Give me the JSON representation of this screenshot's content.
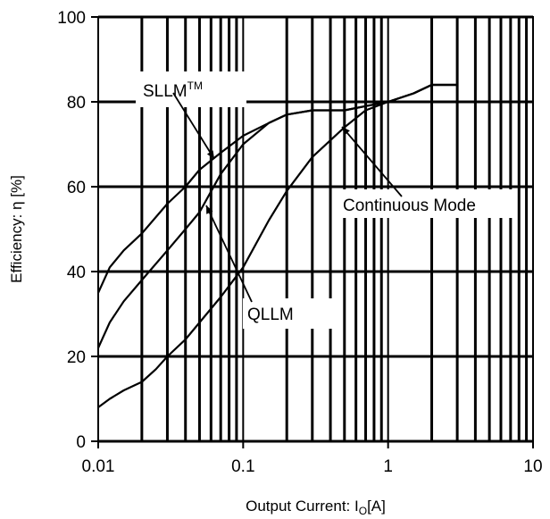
{
  "chart_data": {
    "type": "line",
    "title": "",
    "xlabel": {
      "prefix": "Output Current: I",
      "sub": "O",
      "suffix": "[A]"
    },
    "ylabel": "Efficiency: η [%]",
    "x_scale": "log",
    "xlim": [
      0.01,
      10
    ],
    "ylim": [
      0,
      100
    ],
    "x_ticks": [
      0.01,
      0.1,
      1,
      10
    ],
    "x_tick_labels": [
      "0.01",
      "0.1",
      "1",
      "10"
    ],
    "y_ticks": [
      0,
      20,
      40,
      60,
      80,
      100
    ],
    "y_tick_labels": [
      "0",
      "20",
      "40",
      "60",
      "80",
      "100"
    ],
    "grid": true,
    "series": [
      {
        "name": "SLLM™",
        "x": [
          0.01,
          0.012,
          0.015,
          0.02,
          0.03,
          0.04,
          0.05,
          0.07,
          0.1,
          0.15,
          0.2,
          0.3,
          0.5,
          0.7,
          1.0,
          1.5,
          2.0,
          3.0
        ],
        "y": [
          35,
          41,
          45,
          49,
          56,
          60,
          64,
          68,
          72,
          75,
          77,
          78,
          78,
          79,
          80,
          82,
          84,
          84
        ]
      },
      {
        "name": "QLLM",
        "x": [
          0.01,
          0.012,
          0.015,
          0.02,
          0.03,
          0.04,
          0.05,
          0.07,
          0.1,
          0.15,
          0.2,
          0.3,
          0.5,
          0.7,
          1.0,
          1.5,
          2.0,
          3.0
        ],
        "y": [
          22,
          28,
          33,
          38,
          45,
          50,
          54,
          63,
          70,
          75,
          77,
          78,
          78,
          79,
          80,
          82,
          84,
          84
        ]
      },
      {
        "name": "Continuous Mode",
        "x": [
          0.01,
          0.012,
          0.015,
          0.02,
          0.025,
          0.03,
          0.04,
          0.05,
          0.07,
          0.1,
          0.15,
          0.2,
          0.3,
          0.5,
          0.7,
          1.0,
          1.5,
          2.0,
          3.0
        ],
        "y": [
          8,
          10,
          12,
          14,
          17,
          20,
          24,
          28,
          34,
          41,
          52,
          59,
          67,
          74,
          78,
          80,
          82,
          84,
          84
        ]
      }
    ],
    "annotations": [
      {
        "label": "SLLM",
        "sup": "TM",
        "series": "SLLM™"
      },
      {
        "label": "QLLM",
        "series": "QLLM"
      },
      {
        "label": "Continuous Mode",
        "series": "Continuous Mode"
      }
    ]
  }
}
